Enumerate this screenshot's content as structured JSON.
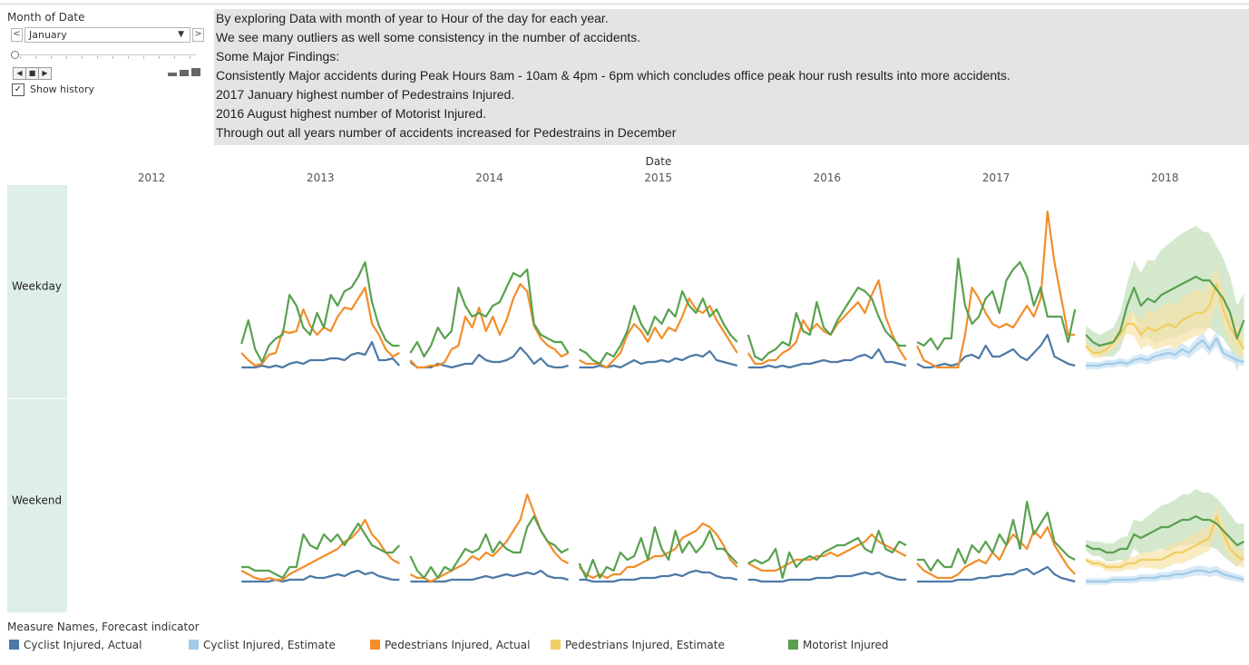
{
  "filter": {
    "title": "Month of Date",
    "selected": "January",
    "prev_label": "<",
    "next_label": ">",
    "caret": "▼",
    "show_history_label": "Show history",
    "show_history_checked": true,
    "play_controls": [
      "◀",
      "■",
      "▶"
    ]
  },
  "notes": {
    "lines": [
      "By exploring Data with month of year to Hour of the day for each year.",
      "We see many outliers as well some consistency in the number of accidents.",
      "Some Major Findings:",
      "Consistently Major accidents during Peak Hours 8am - 10am & 4pm - 6pm which concludes office peak hour rush results into more accidents.",
      "2017 January highest number of Pedestrains Injured.",
      "2016 August highest number of Motorist Injured.",
      "Through out all years number of accidents increased for Pedestrains in December"
    ]
  },
  "chart_data": {
    "type": "line",
    "xlabel": "Date",
    "years": [
      "2012",
      "2013",
      "2014",
      "2015",
      "2016",
      "2017",
      "2018"
    ],
    "rows": [
      "Weekday",
      "Weekend"
    ],
    "hours_per_year": 24,
    "y_range": [
      0,
      100
    ],
    "forecast_year": "2018",
    "colors": {
      "cyclist_actual": "#4e79a7",
      "cyclist_estimate": "#a0cbe8",
      "pedestrians_actual": "#f28e2b",
      "pedestrians_estimate": "#f1ce63",
      "motorist": "#59a14f",
      "row_band": "#deefea"
    },
    "panels": {
      "Weekday": {
        "2013": {
          "cyclist": [
            2,
            2,
            2,
            3,
            2,
            3,
            2,
            4,
            5,
            4,
            6,
            6,
            6,
            7,
            7,
            6,
            9,
            10,
            9,
            16,
            6,
            6,
            7,
            3
          ],
          "pedestrians": [
            10,
            6,
            3,
            4,
            9,
            10,
            22,
            21,
            22,
            34,
            25,
            20,
            24,
            22,
            30,
            35,
            34,
            40,
            46,
            26,
            20,
            12,
            8,
            10
          ],
          "motorist": [
            15,
            28,
            12,
            5,
            14,
            18,
            20,
            42,
            36,
            24,
            20,
            32,
            24,
            42,
            36,
            44,
            46,
            52,
            60,
            38,
            25,
            17,
            14,
            14
          ]
        },
        "2014": {
          "cyclist": [
            5,
            2,
            2,
            2,
            4,
            3,
            2,
            3,
            4,
            4,
            9,
            6,
            5,
            5,
            6,
            8,
            13,
            9,
            4,
            7,
            3,
            2,
            2,
            3
          ],
          "pedestrians": [
            6,
            2,
            2,
            3,
            3,
            5,
            12,
            14,
            30,
            24,
            35,
            22,
            30,
            20,
            28,
            40,
            48,
            44,
            25,
            18,
            14,
            12,
            8,
            10
          ],
          "motorist": [
            10,
            16,
            8,
            14,
            24,
            18,
            22,
            46,
            36,
            30,
            32,
            30,
            36,
            38,
            46,
            54,
            52,
            56,
            26,
            20,
            18,
            16,
            16,
            10
          ]
        },
        "2015": {
          "cyclist": [
            2,
            2,
            2,
            3,
            2,
            3,
            2,
            4,
            6,
            4,
            5,
            5,
            6,
            5,
            7,
            6,
            8,
            9,
            8,
            11,
            6,
            5,
            4,
            3
          ],
          "pedestrians": [
            6,
            4,
            4,
            4,
            2,
            6,
            10,
            20,
            26,
            22,
            16,
            24,
            18,
            24,
            22,
            30,
            40,
            34,
            32,
            36,
            28,
            22,
            16,
            10
          ],
          "motorist": [
            12,
            10,
            6,
            4,
            10,
            8,
            14,
            22,
            36,
            26,
            20,
            30,
            26,
            34,
            30,
            44,
            36,
            32,
            40,
            30,
            34,
            26,
            20,
            16
          ]
        },
        "2016": {
          "cyclist": [
            2,
            2,
            2,
            3,
            2,
            3,
            2,
            3,
            4,
            4,
            5,
            6,
            5,
            5,
            6,
            6,
            8,
            9,
            7,
            12,
            5,
            5,
            4,
            3
          ],
          "pedestrians": [
            10,
            4,
            4,
            6,
            6,
            10,
            12,
            16,
            28,
            22,
            26,
            22,
            20,
            26,
            30,
            34,
            38,
            32,
            42,
            50,
            30,
            20,
            12,
            6
          ],
          "motorist": [
            20,
            8,
            6,
            10,
            12,
            16,
            14,
            32,
            22,
            20,
            38,
            24,
            20,
            28,
            34,
            40,
            46,
            44,
            40,
            30,
            22,
            18,
            14,
            14
          ]
        },
        "2017": {
          "cyclist": [
            4,
            2,
            2,
            3,
            4,
            3,
            4,
            8,
            9,
            7,
            14,
            8,
            8,
            10,
            12,
            8,
            6,
            10,
            14,
            20,
            8,
            6,
            4,
            3
          ],
          "pedestrians": [
            14,
            6,
            4,
            2,
            2,
            2,
            2,
            20,
            46,
            40,
            32,
            26,
            24,
            26,
            24,
            30,
            36,
            30,
            40,
            88,
            60,
            40,
            20,
            20
          ],
          "motorist": [
            16,
            14,
            18,
            12,
            18,
            18,
            62,
            36,
            26,
            30,
            40,
            44,
            32,
            50,
            56,
            60,
            52,
            36,
            46,
            30,
            30,
            30,
            16,
            34
          ]
        },
        "2018": {
          "cyclist": [
            3,
            3,
            3,
            4,
            4,
            5,
            4,
            6,
            7,
            6,
            8,
            9,
            10,
            9,
            12,
            10,
            14,
            17,
            12,
            18,
            10,
            8,
            6,
            5
          ],
          "pedestrians": [
            14,
            10,
            10,
            12,
            16,
            20,
            26,
            26,
            20,
            24,
            22,
            24,
            26,
            24,
            28,
            30,
            32,
            32,
            36,
            48,
            34,
            24,
            18,
            12
          ],
          "motorist": [
            20,
            16,
            14,
            15,
            16,
            22,
            36,
            46,
            36,
            40,
            38,
            42,
            44,
            46,
            48,
            50,
            52,
            50,
            50,
            45,
            40,
            32,
            18,
            28
          ],
          "motorist_band": [
            10,
            12,
            12,
            14,
            16,
            20,
            24,
            30,
            36,
            42,
            46,
            50,
            52,
            54,
            56,
            56,
            56,
            54,
            52,
            48,
            44,
            40,
            36,
            30
          ]
        }
      },
      "Weekend": {
        "2013": {
          "cyclist": [
            2,
            2,
            2,
            2,
            2,
            3,
            2,
            3,
            3,
            3,
            5,
            4,
            4,
            5,
            6,
            5,
            7,
            8,
            6,
            7,
            5,
            4,
            3,
            3
          ],
          "pedestrians": [
            8,
            6,
            4,
            3,
            4,
            3,
            3,
            6,
            8,
            10,
            12,
            14,
            16,
            18,
            20,
            24,
            26,
            30,
            36,
            28,
            24,
            18,
            14,
            12
          ],
          "motorist": [
            10,
            10,
            8,
            8,
            8,
            6,
            4,
            10,
            10,
            28,
            22,
            20,
            28,
            24,
            28,
            22,
            28,
            34,
            28,
            22,
            20,
            18,
            18,
            22
          ]
        },
        "2014": {
          "cyclist": [
            2,
            2,
            2,
            2,
            2,
            2,
            3,
            3,
            3,
            3,
            4,
            5,
            4,
            5,
            6,
            5,
            6,
            7,
            6,
            8,
            5,
            4,
            4,
            3
          ],
          "pedestrians": [
            6,
            4,
            4,
            2,
            4,
            6,
            8,
            10,
            12,
            16,
            14,
            18,
            16,
            20,
            24,
            30,
            36,
            50,
            40,
            30,
            24,
            18,
            14,
            12
          ],
          "motorist": [
            16,
            8,
            4,
            10,
            4,
            10,
            8,
            14,
            20,
            18,
            20,
            28,
            18,
            24,
            20,
            18,
            18,
            32,
            38,
            30,
            24,
            22,
            18,
            20
          ]
        },
        "2015": {
          "cyclist": [
            3,
            3,
            2,
            2,
            2,
            2,
            3,
            3,
            3,
            4,
            4,
            4,
            5,
            5,
            6,
            5,
            7,
            8,
            7,
            7,
            5,
            4,
            4,
            3
          ],
          "pedestrians": [
            10,
            6,
            4,
            6,
            4,
            6,
            6,
            10,
            10,
            12,
            14,
            16,
            16,
            18,
            20,
            26,
            28,
            30,
            34,
            32,
            28,
            22,
            14,
            10
          ],
          "motorist": [
            12,
            4,
            14,
            4,
            10,
            8,
            18,
            14,
            16,
            26,
            14,
            32,
            20,
            14,
            30,
            18,
            24,
            18,
            22,
            30,
            20,
            20,
            16,
            12
          ]
        },
        "2016": {
          "cyclist": [
            3,
            3,
            2,
            2,
            2,
            2,
            3,
            3,
            3,
            3,
            4,
            4,
            4,
            5,
            5,
            5,
            6,
            7,
            6,
            7,
            5,
            4,
            3,
            3
          ],
          "pedestrians": [
            12,
            10,
            8,
            8,
            8,
            10,
            12,
            14,
            14,
            14,
            16,
            16,
            18,
            16,
            18,
            20,
            22,
            24,
            28,
            24,
            22,
            20,
            18,
            16
          ],
          "motorist": [
            12,
            14,
            12,
            14,
            20,
            4,
            18,
            10,
            14,
            16,
            14,
            18,
            20,
            22,
            22,
            24,
            26,
            20,
            18,
            30,
            20,
            18,
            24,
            22
          ]
        },
        "2017": {
          "cyclist": [
            2,
            2,
            2,
            2,
            2,
            2,
            3,
            3,
            3,
            4,
            4,
            5,
            5,
            6,
            6,
            8,
            9,
            6,
            8,
            10,
            6,
            4,
            3,
            2
          ],
          "pedestrians": [
            12,
            8,
            6,
            4,
            4,
            4,
            6,
            10,
            12,
            14,
            12,
            18,
            14,
            22,
            28,
            24,
            20,
            30,
            26,
            32,
            22,
            16,
            10,
            6
          ],
          "motorist": [
            14,
            14,
            8,
            14,
            10,
            10,
            20,
            12,
            22,
            18,
            24,
            18,
            28,
            22,
            36,
            20,
            46,
            28,
            34,
            40,
            24,
            20,
            16,
            14
          ],
          "motorist_extra": []
        },
        "2018": {
          "cyclist": [
            2,
            2,
            2,
            2,
            3,
            3,
            3,
            3,
            4,
            4,
            4,
            5,
            5,
            6,
            6,
            7,
            8,
            8,
            7,
            8,
            6,
            5,
            4,
            3
          ],
          "pedestrians": [
            14,
            12,
            12,
            10,
            10,
            10,
            12,
            12,
            14,
            14,
            14,
            14,
            16,
            18,
            18,
            20,
            22,
            24,
            26,
            38,
            28,
            20,
            16,
            14
          ],
          "motorist": [
            22,
            20,
            20,
            18,
            18,
            20,
            20,
            28,
            26,
            28,
            30,
            32,
            32,
            34,
            36,
            36,
            38,
            36,
            36,
            34,
            30,
            26,
            22,
            24
          ],
          "motorist_band": [
            6,
            8,
            8,
            10,
            10,
            12,
            14,
            16,
            18,
            20,
            22,
            24,
            26,
            26,
            28,
            28,
            30,
            30,
            30,
            28,
            28,
            26,
            24,
            20
          ]
        }
      }
    }
  },
  "legend": {
    "title": "Measure Names, Forecast indicator",
    "items": [
      {
        "label": "Cyclist Injured, Actual",
        "color": "#4e79a7"
      },
      {
        "label": "Cyclist Injured, Estimate",
        "color": "#a0cbe8"
      },
      {
        "label": "Pedestrians Injured, Actual",
        "color": "#f28e2b"
      },
      {
        "label": "Pedestrians Injured, Estimate",
        "color": "#f1ce63"
      },
      {
        "label": "Motorist Injured",
        "color": "#59a14f"
      }
    ]
  }
}
